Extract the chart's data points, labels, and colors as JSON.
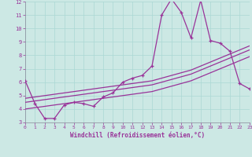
{
  "xlabel": "Windchill (Refroidissement éolien,°C)",
  "bg_color": "#cce8e4",
  "line_color": "#993399",
  "grid_color": "#aad8d4",
  "tick_label_color": "#993399",
  "xlim": [
    0,
    23
  ],
  "ylim": [
    3,
    12
  ],
  "yticks": [
    3,
    4,
    5,
    6,
    7,
    8,
    9,
    10,
    11,
    12
  ],
  "xticks": [
    0,
    1,
    2,
    3,
    4,
    5,
    6,
    7,
    8,
    9,
    10,
    11,
    12,
    13,
    14,
    15,
    16,
    17,
    18,
    19,
    20,
    21,
    22,
    23
  ],
  "series1_x": [
    0,
    1,
    2,
    3,
    4,
    5,
    6,
    7,
    8,
    9,
    10,
    11,
    12,
    13,
    14,
    15,
    16,
    17,
    18,
    19,
    20,
    21,
    22,
    23
  ],
  "series1_y": [
    6.1,
    4.4,
    3.3,
    3.3,
    4.3,
    4.5,
    4.4,
    4.2,
    4.9,
    5.2,
    6.0,
    6.3,
    6.5,
    7.2,
    11.0,
    12.2,
    11.2,
    9.3,
    12.1,
    9.1,
    8.9,
    8.3,
    5.9,
    5.5
  ],
  "series2_x": [
    0,
    1,
    2,
    3,
    4,
    5,
    6,
    7,
    8,
    9,
    10,
    11,
    12,
    13,
    14,
    15,
    16,
    17,
    18,
    19,
    20,
    21,
    22,
    23
  ],
  "series2_y": [
    4.0,
    4.1,
    4.2,
    4.3,
    4.4,
    4.5,
    4.6,
    4.7,
    4.8,
    4.9,
    5.0,
    5.1,
    5.2,
    5.3,
    5.5,
    5.7,
    5.9,
    6.1,
    6.4,
    6.7,
    7.0,
    7.3,
    7.6,
    7.9
  ],
  "series3_x": [
    0,
    1,
    2,
    3,
    4,
    5,
    6,
    7,
    8,
    9,
    10,
    11,
    12,
    13,
    14,
    15,
    16,
    17,
    18,
    19,
    20,
    21,
    22,
    23
  ],
  "series3_y": [
    4.5,
    4.6,
    4.7,
    4.8,
    4.9,
    5.0,
    5.1,
    5.2,
    5.3,
    5.4,
    5.5,
    5.6,
    5.7,
    5.8,
    6.0,
    6.2,
    6.4,
    6.6,
    6.9,
    7.2,
    7.5,
    7.8,
    8.1,
    8.4
  ],
  "series4_x": [
    0,
    1,
    2,
    3,
    4,
    5,
    6,
    7,
    8,
    9,
    10,
    11,
    12,
    13,
    14,
    15,
    16,
    17,
    18,
    19,
    20,
    21,
    22,
    23
  ],
  "series4_y": [
    4.8,
    4.9,
    5.0,
    5.1,
    5.2,
    5.3,
    5.4,
    5.5,
    5.6,
    5.7,
    5.8,
    5.9,
    6.0,
    6.1,
    6.3,
    6.5,
    6.7,
    6.9,
    7.2,
    7.5,
    7.8,
    8.1,
    8.4,
    8.7
  ]
}
